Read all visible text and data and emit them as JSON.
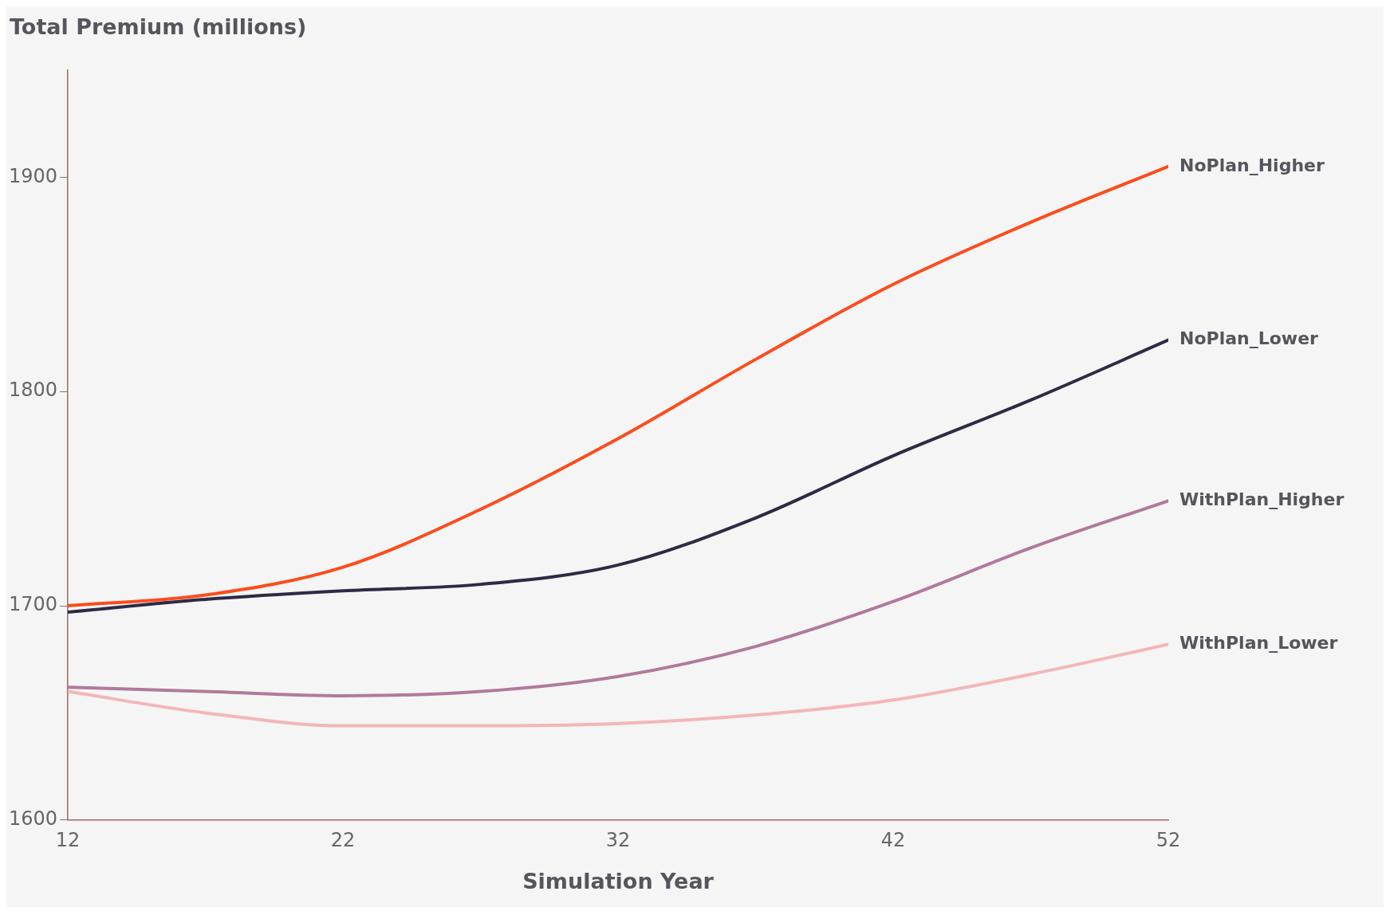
{
  "chart_data": {
    "type": "line",
    "ylabel": "Total Premium (millions)",
    "xlabel": "Simulation Year",
    "x": [
      12,
      17,
      22,
      27,
      32,
      37,
      42,
      47,
      52
    ],
    "xlim": [
      12,
      52
    ],
    "xticks": [
      12,
      22,
      32,
      42,
      52
    ],
    "ylim": [
      1600,
      1950
    ],
    "yticks": [
      1600,
      1700,
      1800,
      1900
    ],
    "grid": false,
    "legend": false,
    "marker": "none",
    "line_style": "solid",
    "series": [
      {
        "name": "NoPlan_Higher",
        "color": "#fc4c1c",
        "values": [
          1700,
          1705,
          1718,
          1745,
          1778,
          1815,
          1850,
          1879,
          1905
        ]
      },
      {
        "name": "NoPlan_Lower",
        "color": "#2d2a44",
        "values": [
          1697,
          1703,
          1707,
          1710,
          1719,
          1741,
          1770,
          1796,
          1824
        ]
      },
      {
        "name": "WithPlan_Higher",
        "color": "#b07a9b",
        "values": [
          1662,
          1660,
          1658,
          1660,
          1667,
          1681,
          1702,
          1727,
          1749
        ]
      },
      {
        "name": "WithPlan_Lower",
        "color": "#f4b6b8",
        "values": [
          1660,
          1650,
          1644,
          1644,
          1645,
          1649,
          1656,
          1668,
          1682
        ]
      }
    ]
  }
}
